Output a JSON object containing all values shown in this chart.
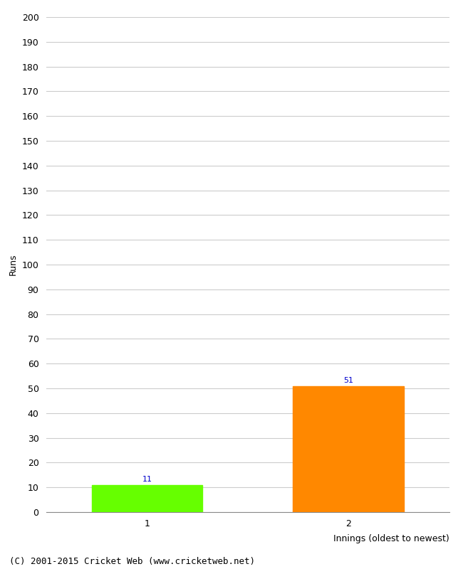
{
  "categories": [
    "1",
    "2"
  ],
  "values": [
    11,
    51
  ],
  "bar_colors": [
    "#66ff00",
    "#ff8800"
  ],
  "ylabel": "Runs",
  "xlabel": "Innings (oldest to newest)",
  "ylim": [
    0,
    200
  ],
  "yticks": [
    0,
    10,
    20,
    30,
    40,
    50,
    60,
    70,
    80,
    90,
    100,
    110,
    120,
    130,
    140,
    150,
    160,
    170,
    180,
    190,
    200
  ],
  "value_label_color": "#0000cc",
  "value_label_fontsize": 8,
  "footer": "(C) 2001-2015 Cricket Web (www.cricketweb.net)",
  "footer_fontsize": 9,
  "background_color": "#ffffff",
  "grid_color": "#cccccc",
  "tick_fontsize": 9,
  "ylabel_fontsize": 9,
  "xlabel_fontsize": 9,
  "x_positions": [
    1,
    2
  ],
  "bar_width": 0.55,
  "xlim": [
    0.5,
    2.5
  ]
}
